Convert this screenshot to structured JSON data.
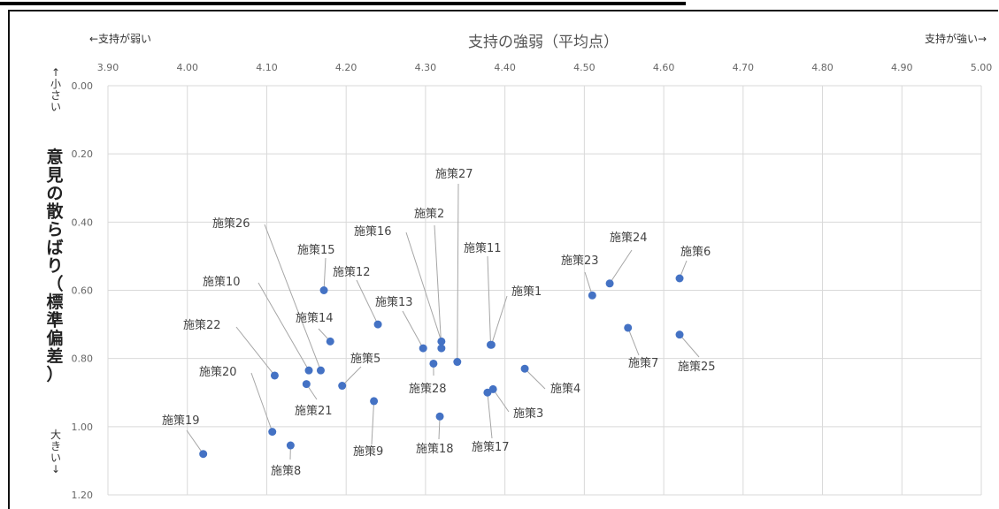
{
  "chart_data": {
    "type": "scatter",
    "title": "支持の強弱（平均点）",
    "ylabel_chars": [
      "意",
      "見",
      "の",
      "散",
      "ら",
      "ば",
      "り",
      "（",
      "標",
      "準",
      "偏",
      "差",
      "）"
    ],
    "left_label": "←支持が弱い",
    "right_label": "支持が強い→",
    "top_small": [
      "↑",
      "小",
      "さ",
      "い"
    ],
    "bottom_large": [
      "大",
      "き",
      "い",
      "↓"
    ],
    "xlim": [
      3.9,
      5.0
    ],
    "ylim": [
      0.0,
      1.2
    ],
    "y_inverted": true,
    "grid": true,
    "x_ticks": [
      "3.90",
      "4.00",
      "4.10",
      "4.20",
      "4.30",
      "4.40",
      "4.50",
      "4.60",
      "4.70",
      "4.80",
      "4.90",
      "5.00"
    ],
    "y_ticks": [
      "0.00",
      "0.20",
      "0.40",
      "0.60",
      "0.80",
      "1.00",
      "1.20"
    ],
    "point_color": "#4472c4",
    "points": [
      {
        "label": "施策1",
        "x": 4.383,
        "y": 0.76
      },
      {
        "label": "施策2",
        "x": 4.32,
        "y": 0.77
      },
      {
        "label": "施策3",
        "x": 4.385,
        "y": 0.89
      },
      {
        "label": "施策4",
        "x": 4.425,
        "y": 0.83
      },
      {
        "label": "施策5",
        "x": 4.195,
        "y": 0.88
      },
      {
        "label": "施策6",
        "x": 4.62,
        "y": 0.565
      },
      {
        "label": "施策7",
        "x": 4.555,
        "y": 0.71
      },
      {
        "label": "施策8",
        "x": 4.13,
        "y": 1.055
      },
      {
        "label": "施策9",
        "x": 4.235,
        "y": 0.925
      },
      {
        "label": "施策10",
        "x": 4.153,
        "y": 0.835
      },
      {
        "label": "施策11",
        "x": 4.382,
        "y": 0.76
      },
      {
        "label": "施策12",
        "x": 4.24,
        "y": 0.7
      },
      {
        "label": "施策13",
        "x": 4.297,
        "y": 0.77
      },
      {
        "label": "施策14",
        "x": 4.18,
        "y": 0.75
      },
      {
        "label": "施策15",
        "x": 4.172,
        "y": 0.6
      },
      {
        "label": "施策16",
        "x": 4.32,
        "y": 0.75
      },
      {
        "label": "施策17",
        "x": 4.378,
        "y": 0.9
      },
      {
        "label": "施策18",
        "x": 4.318,
        "y": 0.97
      },
      {
        "label": "施策19",
        "x": 4.02,
        "y": 1.08
      },
      {
        "label": "施策20",
        "x": 4.107,
        "y": 1.015
      },
      {
        "label": "施策21",
        "x": 4.15,
        "y": 0.875
      },
      {
        "label": "施策22",
        "x": 4.11,
        "y": 0.85
      },
      {
        "label": "施策23",
        "x": 4.51,
        "y": 0.615
      },
      {
        "label": "施策24",
        "x": 4.532,
        "y": 0.58
      },
      {
        "label": "施策25",
        "x": 4.62,
        "y": 0.73
      },
      {
        "label": "施策26",
        "x": 4.168,
        "y": 0.835
      },
      {
        "label": "施策27",
        "x": 4.34,
        "y": 0.81
      },
      {
        "label": "施策28",
        "x": 4.31,
        "y": 0.815
      }
    ]
  }
}
